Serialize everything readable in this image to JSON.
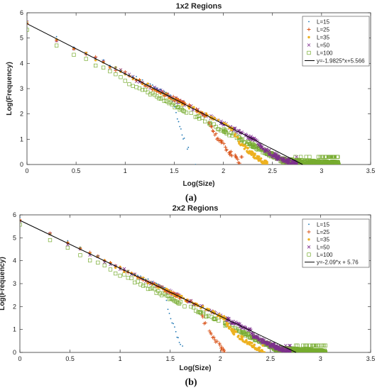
{
  "colors": {
    "L=15": "#1f77b4",
    "L=25": "#d95319",
    "L=35": "#edb120",
    "L=50": "#7e2f8e",
    "L=100": "#77ac30",
    "fit": "#000000"
  },
  "chart_data": [
    {
      "type": "scatter",
      "title": "1x2 Regions",
      "xlabel": "Log(Size)",
      "ylabel": "Log(Frequency)",
      "caption": "(a)",
      "xlim": [
        0,
        3.5
      ],
      "ylim": [
        0,
        6
      ],
      "xticks": [
        "0",
        "0.5",
        "1",
        "1.5",
        "2",
        "2.5",
        "3",
        "3.5"
      ],
      "yticks": [
        "0",
        "1",
        "2",
        "3",
        "4",
        "5",
        "6"
      ],
      "grid": false,
      "legend_position": "top-right",
      "series": [
        {
          "name": "L=15",
          "marker": "dot",
          "x_range": [
            0,
            1.72
          ],
          "cutoff": 1.5
        },
        {
          "name": "L=25",
          "marker": "plus",
          "x_range": [
            0,
            2.2
          ],
          "cutoff": 1.85
        },
        {
          "name": "L=35",
          "marker": "filled-circle",
          "x_range": [
            0,
            2.45
          ],
          "cutoff": 2.1
        },
        {
          "name": "L=50",
          "marker": "x",
          "x_range": [
            0,
            2.75
          ],
          "cutoff": 2.35
        },
        {
          "name": "L=100",
          "marker": "square",
          "x_range": [
            0,
            3.25
          ],
          "cutoff": 2.6
        }
      ],
      "fit_line": {
        "label": "y=-1.9825*x+5.566",
        "slope": -1.9825,
        "intercept": 5.566
      }
    },
    {
      "type": "scatter",
      "title": "2x2 Regions",
      "xlabel": "Log(Size)",
      "ylabel": "Log(Frequency)",
      "caption": "(b)",
      "xlim": [
        0,
        3.5
      ],
      "ylim": [
        0,
        6
      ],
      "xticks": [
        "0",
        "0.5",
        "1",
        "1.5",
        "2",
        "2.5",
        "3",
        "3.5"
      ],
      "yticks": [
        "0",
        "1",
        "2",
        "3",
        "4",
        "5",
        "6"
      ],
      "grid": false,
      "legend_position": "top-right",
      "series": [
        {
          "name": "L=15",
          "marker": "dot",
          "x_range": [
            0,
            1.65
          ],
          "cutoff": 1.45
        },
        {
          "name": "L=25",
          "marker": "plus",
          "x_range": [
            0,
            2.05
          ],
          "cutoff": 1.8
        },
        {
          "name": "L=35",
          "marker": "filled-circle",
          "x_range": [
            0,
            2.45
          ],
          "cutoff": 2.05
        },
        {
          "name": "L=50",
          "marker": "x",
          "x_range": [
            0,
            2.7
          ],
          "cutoff": 2.3
        },
        {
          "name": "L=100",
          "marker": "square",
          "x_range": [
            0,
            3.05
          ],
          "cutoff": 2.55
        }
      ],
      "fit_line": {
        "label": "y=-2.09*x + 5.76",
        "slope": -2.09,
        "intercept": 5.76
      }
    }
  ]
}
